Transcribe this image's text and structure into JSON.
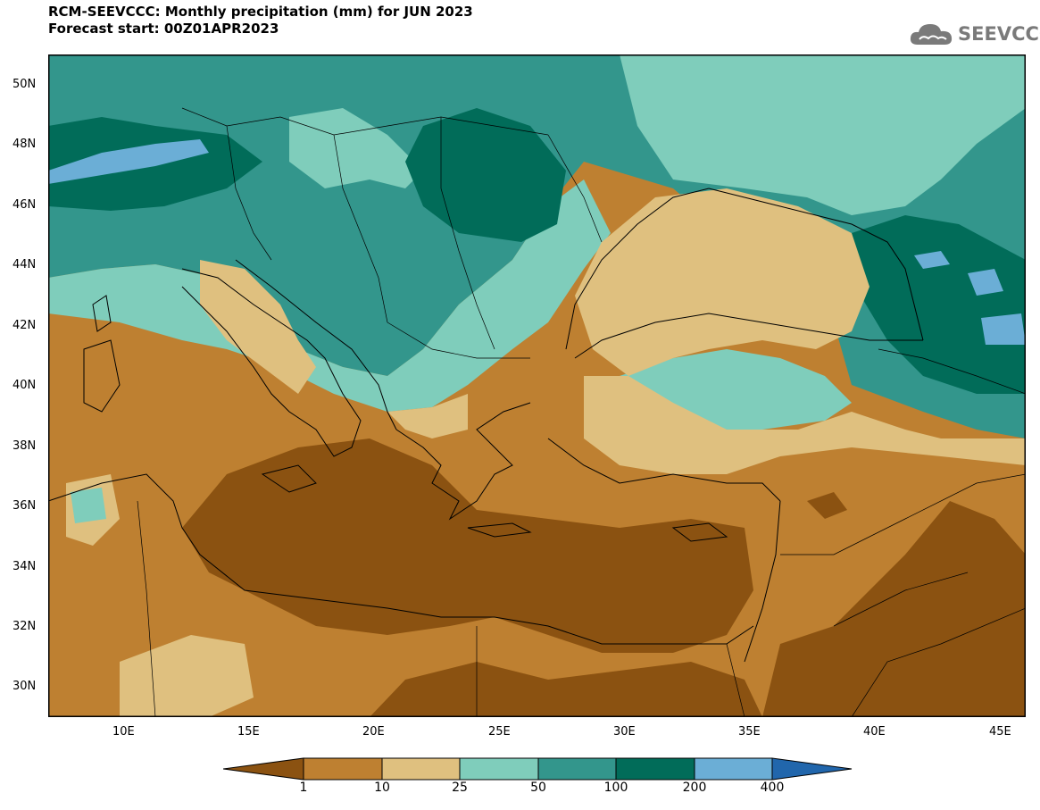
{
  "header": {
    "title_line1": "RCM-SEEVCCC: Monthly precipitation (mm) for JUN 2023",
    "title_line2": "Forecast start: 00Z01APR2023"
  },
  "logo": {
    "text": "SEEVCCC",
    "icon": "cloud-logo-icon"
  },
  "map": {
    "lat_labels": [
      "50N",
      "48N",
      "46N",
      "44N",
      "42N",
      "40N",
      "38N",
      "36N",
      "34N",
      "32N",
      "30N"
    ],
    "lon_labels": [
      "10E",
      "15E",
      "20E",
      "25E",
      "30E",
      "35E",
      "40E",
      "45E"
    ],
    "lat_range": [
      29,
      51
    ],
    "lon_range": [
      7,
      46
    ]
  },
  "colorbar": {
    "labels": [
      "1",
      "10",
      "25",
      "50",
      "100",
      "200",
      "400"
    ],
    "colors": [
      "#8b5211",
      "#be8031",
      "#dfc07f",
      "#7fcdbb",
      "#33968c",
      "#016c59",
      "#6baed6",
      "#2166ac"
    ]
  }
}
